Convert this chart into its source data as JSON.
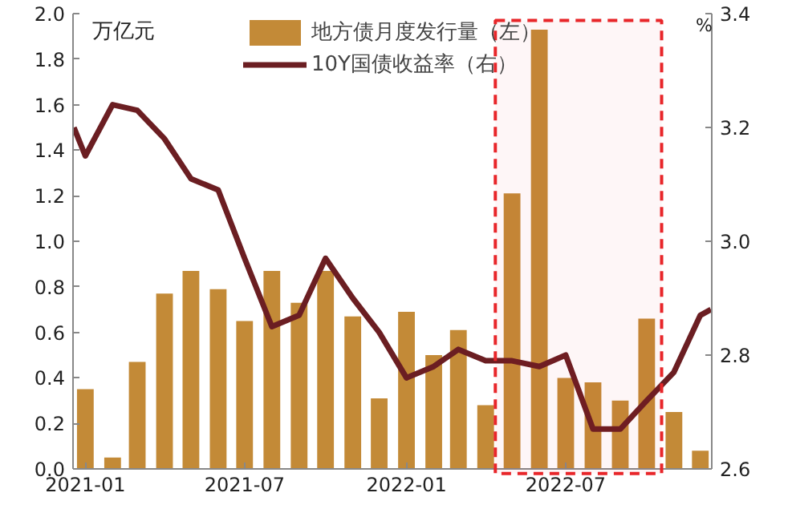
{
  "chart_data": {
    "type": "bar",
    "x": [
      "2021-01",
      "2021-02",
      "2021-03",
      "2021-04",
      "2021-05",
      "2021-06",
      "2021-07",
      "2021-08",
      "2021-09",
      "2021-10",
      "2021-11",
      "2021-12",
      "2022-01",
      "2022-02",
      "2022-03",
      "2022-04",
      "2022-05",
      "2022-06",
      "2022-07",
      "2022-08",
      "2022-09",
      "2022-10",
      "2022-11",
      "2022-12"
    ],
    "series": [
      {
        "name": "地方债月度发行量（左）",
        "color": "#c38a37",
        "values": [
          0.35,
          0.05,
          0.47,
          0.77,
          0.87,
          0.79,
          0.65,
          0.87,
          0.73,
          0.87,
          0.67,
          0.31,
          0.69,
          0.5,
          0.61,
          0.28,
          1.21,
          1.93,
          0.4,
          0.38,
          0.3,
          0.66,
          0.25,
          0.08
        ]
      },
      {
        "name": "10Y国债收益率（右）",
        "type": "line",
        "axis": "y2",
        "color": "#6b1e22",
        "x": [
          "2020-12-19",
          "2021-01",
          "2021-02",
          "2021-03",
          "2021-04",
          "2021-05",
          "2021-06",
          "2021-07",
          "2021-08",
          "2021-09",
          "2021-10",
          "2021-11",
          "2021-12",
          "2022-01",
          "2022-02",
          "2022-03",
          "2022-04",
          "2022-05",
          "2022-06",
          "2022-07",
          "2022-08",
          "2022-09",
          "2022-10",
          "2022-11",
          "2022-12",
          "2022-12-13"
        ],
        "values": [
          3.2,
          3.15,
          3.24,
          3.23,
          3.18,
          3.11,
          3.09,
          2.97,
          2.85,
          2.87,
          2.97,
          2.9,
          2.84,
          2.76,
          2.78,
          2.81,
          2.79,
          2.79,
          2.78,
          2.8,
          2.67,
          2.67,
          2.72,
          2.77,
          2.87,
          2.88
        ]
      }
    ],
    "xlim": [
      "2020-12-18",
      "2022-12-14"
    ],
    "xticks": [
      "2021-01",
      "2021-07",
      "2022-01",
      "2022-07"
    ],
    "ylim": [
      0,
      2.0
    ],
    "yticks": [
      {
        "value": 0,
        "label": "0.0"
      },
      0.2,
      0.4,
      0.6,
      0.8,
      {
        "value": 1,
        "label": "1.0"
      },
      1.2,
      1.4,
      1.6,
      1.8,
      {
        "value": 2,
        "label": "2.0"
      }
    ],
    "y2lim": [
      2.6,
      3.4
    ],
    "y2ticks": [
      {
        "value": 2.6,
        "label": "2.6"
      },
      2.8,
      {
        "value": 3,
        "label": "3.0"
      },
      3.2,
      3.4
    ],
    "ylabel": "万亿元",
    "y2label": "%",
    "bands": [
      {
        "axis": "x",
        "from": "2022-04-12",
        "to": "2022-10-18",
        "color": "#e8262a"
      }
    ],
    "legend": "top",
    "grid": false
  }
}
